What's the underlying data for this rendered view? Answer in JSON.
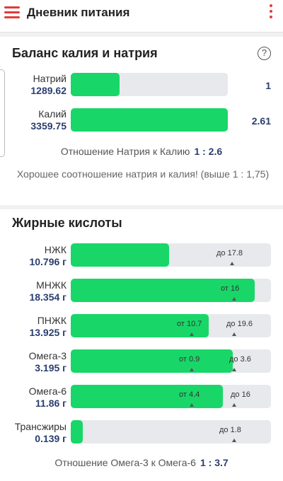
{
  "header": {
    "title": "Дневник питания"
  },
  "balance": {
    "title": "Баланс калия и натрия",
    "help": "?",
    "sodium": {
      "name": "Натрий",
      "value": "1289.62",
      "ratio": "1",
      "fill_fraction": 0.31
    },
    "potassium": {
      "name": "Калий",
      "value": "3359.75",
      "ratio": "2.61",
      "fill_fraction": 1.0
    },
    "ratio_label": "Отношение Натрия к Калию",
    "ratio_value": "1 : 2.6",
    "note": "Хорошее соотношение натрия и калия! (выше 1 : 1,75)"
  },
  "fats": {
    "title": "Жирные кислоты",
    "rows": [
      {
        "name": "НЖК",
        "value": "10.796 г",
        "fill_fraction": 0.49,
        "marks": [
          "до 17.8"
        ]
      },
      {
        "name": "МНЖК",
        "value": "18.354 г",
        "fill_fraction": 0.92,
        "marks": [
          "от 16"
        ]
      },
      {
        "name": "ПНЖК",
        "value": "13.925 г",
        "fill_fraction": 0.69,
        "marks": [
          "от 10.7",
          "до 19.6"
        ]
      },
      {
        "name": "Омега-3",
        "value": "3.195 г",
        "fill_fraction": 0.81,
        "marks": [
          "от 0.9",
          "до 3.6"
        ]
      },
      {
        "name": "Омега-6",
        "value": "11.86 г",
        "fill_fraction": 0.76,
        "marks": [
          "от 4.4",
          "до 16"
        ]
      },
      {
        "name": "Трансжиры",
        "value": "0.139 г",
        "fill_fraction": 0.06,
        "marks": [
          "до 1.8"
        ]
      }
    ],
    "ratio_label": "Отношение Омега-3 к Омега-6",
    "ratio_value": "1 : 3.7"
  }
}
